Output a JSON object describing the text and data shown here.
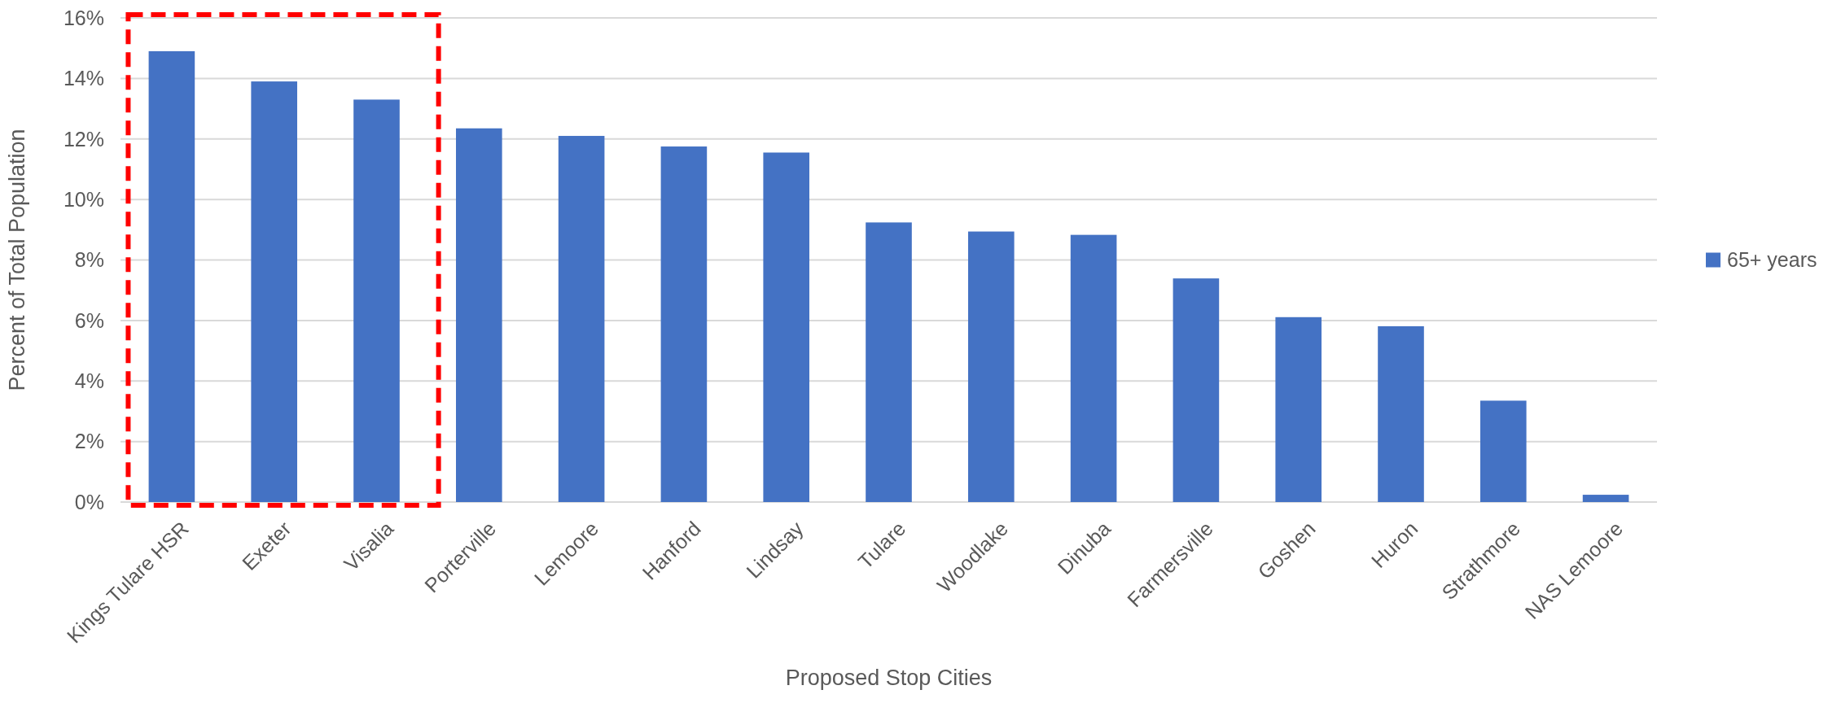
{
  "chart_data": {
    "type": "bar",
    "xlabel": "Proposed Stop Cities",
    "ylabel": "Percent of Total Population",
    "categories": [
      "Kings Tulare HSR",
      "Exeter",
      "Visalia",
      "Porterville",
      "Lemoore",
      "Hanford",
      "Lindsay",
      "Tulare",
      "Woodlake",
      "Dinuba",
      "Farmersville",
      "Goshen",
      "Huron",
      "Strathmore",
      "NAS Lemoore"
    ],
    "series": [
      {
        "name": "65+ years",
        "color": "#4472c4",
        "values": [
          14.9,
          13.9,
          13.3,
          12.35,
          12.1,
          11.75,
          11.55,
          9.24,
          8.94,
          8.83,
          7.39,
          6.11,
          5.81,
          3.35,
          0.24
        ]
      }
    ],
    "ylim": [
      0,
      16
    ],
    "yticks": [
      {
        "value": 0,
        "label": "0%"
      },
      {
        "value": 2,
        "label": "2%"
      },
      {
        "value": 4,
        "label": "4%"
      },
      {
        "value": 6,
        "label": "6%"
      },
      {
        "value": 8,
        "label": "8%"
      },
      {
        "value": 10,
        "label": "10%"
      },
      {
        "value": 12,
        "label": "12%"
      },
      {
        "value": 14,
        "label": "14%"
      },
      {
        "value": 16,
        "label": "16%"
      }
    ],
    "grid": "y",
    "legend": "right"
  }
}
